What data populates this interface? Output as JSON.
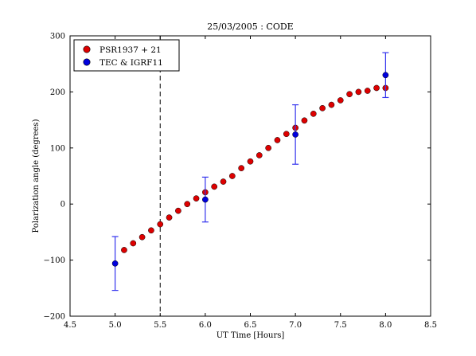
{
  "chart_data": {
    "type": "scatter",
    "title": "25/03/2005 : CODE",
    "xlabel": "UT Time [Hours]",
    "ylabel": "Polarization angle (degrees)",
    "xlim": [
      4.5,
      8.5
    ],
    "ylim": [
      -200,
      300
    ],
    "xticks": [
      "4.5",
      "5.0",
      "5.5",
      "6.0",
      "6.5",
      "7.0",
      "7.5",
      "8.0",
      "8.5"
    ],
    "yticks": [
      "−200",
      "−100",
      "0",
      "100",
      "200",
      "300"
    ],
    "grid": false,
    "legend_position": "top-left",
    "vline": {
      "x": 5.5,
      "style": "dashed"
    },
    "series": [
      {
        "name": "PSR1937 + 21",
        "color": "#dd0000",
        "x": [
          5.1,
          5.2,
          5.3,
          5.4,
          5.5,
          5.6,
          5.7,
          5.8,
          5.9,
          6.0,
          6.1,
          6.2,
          6.3,
          6.4,
          6.5,
          6.6,
          6.7,
          6.8,
          6.9,
          7.0,
          7.1,
          7.2,
          7.3,
          7.4,
          7.5,
          7.6,
          7.7,
          7.8,
          7.9,
          8.0
        ],
        "y": [
          -82,
          -70,
          -59,
          -47,
          -36,
          -24,
          -12,
          0,
          10,
          21,
          31,
          40,
          50,
          64,
          76,
          87,
          100,
          114,
          125,
          136,
          149,
          161,
          171,
          177,
          185,
          196,
          200,
          202,
          207,
          207
        ]
      },
      {
        "name": "TEC & IGRF11",
        "color": "#0000dd",
        "errorbar_color": "#3333ee",
        "x": [
          5.0,
          6.0,
          7.0,
          8.0
        ],
        "y": [
          -106,
          8,
          124,
          230
        ],
        "yerr": [
          48,
          40,
          53,
          40
        ]
      }
    ]
  }
}
